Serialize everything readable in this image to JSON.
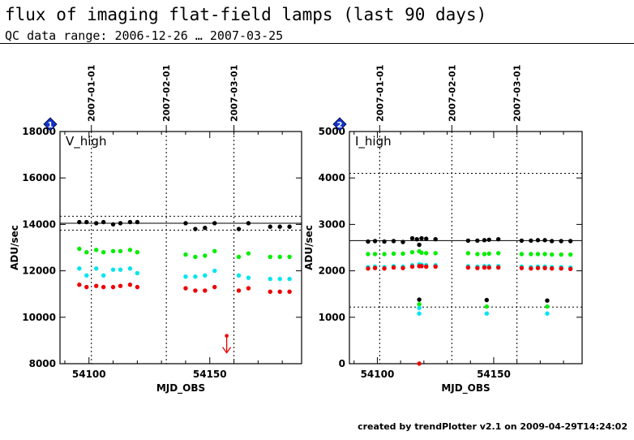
{
  "header": {
    "title": "flux of imaging flat-field lamps (last 90 days)",
    "subtitle": "QC data range: 2006-12-26 … 2007-03-25"
  },
  "footer": {
    "text": "created by trendPlotter v2.1 on 2009-04-29T14:24:02"
  },
  "chart_data": [
    {
      "type": "scatter",
      "badge": "1",
      "label": "V_high",
      "xlabel": "MJD_OBS",
      "ylabel": "ADU/sec",
      "xlim": [
        54088,
        54188
      ],
      "ylim": [
        8000,
        18000
      ],
      "xticks": [
        54100,
        54150
      ],
      "xtick_labels": [
        "54100",
        "54150"
      ],
      "yticks": [
        8000,
        10000,
        12000,
        14000,
        16000,
        18000
      ],
      "ytick_labels": [
        "8000",
        "10000",
        "12000",
        "14000",
        "16000",
        "18000"
      ],
      "date_marks": [
        {
          "x": 54101,
          "label": "2007-01-01"
        },
        {
          "x": 54132,
          "label": "2007-02-01"
        },
        {
          "x": 54160,
          "label": "2007-03-01"
        }
      ],
      "ref_lines": [
        {
          "y": 14050,
          "style": "solid"
        },
        {
          "y": 14350,
          "style": "dotted"
        },
        {
          "y": 13750,
          "style": "dotted"
        }
      ],
      "series": [
        {
          "color": "#000000",
          "points": [
            [
              54096,
              14100
            ],
            [
              54099,
              14100
            ],
            [
              54103,
              14050
            ],
            [
              54106,
              14100
            ],
            [
              54110,
              14000
            ],
            [
              54113,
              14050
            ],
            [
              54117,
              14100
            ],
            [
              54120,
              14100
            ],
            [
              54140,
              14050
            ],
            [
              54144,
              13800
            ],
            [
              54148,
              13850
            ],
            [
              54152,
              14050
            ],
            [
              54162,
              13800
            ],
            [
              54166,
              14050
            ],
            [
              54175,
              13900
            ],
            [
              54179,
              13900
            ],
            [
              54183,
              13900
            ]
          ]
        },
        {
          "color": "#00ee00",
          "points": [
            [
              54096,
              12950
            ],
            [
              54099,
              12800
            ],
            [
              54103,
              12900
            ],
            [
              54106,
              12800
            ],
            [
              54110,
              12850
            ],
            [
              54113,
              12850
            ],
            [
              54117,
              12900
            ],
            [
              54120,
              12800
            ],
            [
              54140,
              12700
            ],
            [
              54144,
              12600
            ],
            [
              54148,
              12650
            ],
            [
              54152,
              12850
            ],
            [
              54162,
              12600
            ],
            [
              54166,
              12750
            ],
            [
              54175,
              12600
            ],
            [
              54179,
              12600
            ],
            [
              54183,
              12600
            ]
          ]
        },
        {
          "color": "#00e5ee",
          "points": [
            [
              54096,
              12100
            ],
            [
              54099,
              11800
            ],
            [
              54103,
              12100
            ],
            [
              54106,
              11800
            ],
            [
              54110,
              12050
            ],
            [
              54113,
              12050
            ],
            [
              54117,
              12100
            ],
            [
              54120,
              11900
            ],
            [
              54140,
              11750
            ],
            [
              54144,
              11750
            ],
            [
              54148,
              11800
            ],
            [
              54152,
              12000
            ],
            [
              54162,
              11800
            ],
            [
              54166,
              11700
            ],
            [
              54175,
              11650
            ],
            [
              54179,
              11650
            ],
            [
              54183,
              11650
            ]
          ]
        },
        {
          "color": "#ee0000",
          "points": [
            [
              54096,
              11400
            ],
            [
              54099,
              11300
            ],
            [
              54103,
              11350
            ],
            [
              54106,
              11300
            ],
            [
              54110,
              11300
            ],
            [
              54113,
              11350
            ],
            [
              54117,
              11400
            ],
            [
              54120,
              11300
            ],
            [
              54140,
              11250
            ],
            [
              54144,
              11150
            ],
            [
              54148,
              11150
            ],
            [
              54152,
              11300
            ],
            [
              54162,
              11150
            ],
            [
              54166,
              11250
            ],
            [
              54175,
              11100
            ],
            [
              54179,
              11100
            ],
            [
              54183,
              11100
            ]
          ]
        }
      ],
      "arrows": [
        {
          "x": 54157,
          "y": 9200,
          "color": "#ee0000"
        }
      ]
    },
    {
      "type": "scatter",
      "badge": "2",
      "label": "I_high",
      "xlabel": "MJD_OBS",
      "ylabel": "ADU/sec",
      "xlim": [
        54088,
        54188
      ],
      "ylim": [
        0,
        5000
      ],
      "xticks": [
        54100,
        54150
      ],
      "xtick_labels": [
        "54100",
        "54150"
      ],
      "yticks": [
        0,
        1000,
        2000,
        3000,
        4000,
        5000
      ],
      "ytick_labels": [
        "0",
        "1000",
        "2000",
        "3000",
        "4000",
        "5000"
      ],
      "date_marks": [
        {
          "x": 54101,
          "label": "2007-01-01"
        },
        {
          "x": 54132,
          "label": "2007-02-01"
        },
        {
          "x": 54160,
          "label": "2007-03-01"
        }
      ],
      "ref_lines": [
        {
          "y": 2650,
          "style": "solid"
        },
        {
          "y": 4100,
          "style": "dotted"
        },
        {
          "y": 1220,
          "style": "dotted"
        }
      ],
      "series": [
        {
          "color": "#000000",
          "points": [
            [
              54096,
              2630
            ],
            [
              54099,
              2640
            ],
            [
              54103,
              2630
            ],
            [
              54107,
              2640
            ],
            [
              54111,
              2620
            ],
            [
              54115,
              2700
            ],
            [
              54117,
              2680
            ],
            [
              54118,
              2560
            ],
            [
              54118,
              1380
            ],
            [
              54119,
              2700
            ],
            [
              54121,
              2690
            ],
            [
              54125,
              2680
            ],
            [
              54139,
              2650
            ],
            [
              54143,
              2650
            ],
            [
              54146,
              2660
            ],
            [
              54147,
              1370
            ],
            [
              54148,
              2670
            ],
            [
              54152,
              2680
            ],
            [
              54162,
              2650
            ],
            [
              54166,
              2650
            ],
            [
              54169,
              2660
            ],
            [
              54172,
              2660
            ],
            [
              54173,
              1360
            ],
            [
              54175,
              2640
            ],
            [
              54179,
              2640
            ],
            [
              54183,
              2640
            ]
          ]
        },
        {
          "color": "#00ee00",
          "points": [
            [
              54096,
              2360
            ],
            [
              54099,
              2360
            ],
            [
              54103,
              2360
            ],
            [
              54107,
              2370
            ],
            [
              54111,
              2370
            ],
            [
              54115,
              2400
            ],
            [
              54118,
              2420
            ],
            [
              54118,
              1280
            ],
            [
              54119,
              2390
            ],
            [
              54121,
              2380
            ],
            [
              54125,
              2380
            ],
            [
              54139,
              2380
            ],
            [
              54143,
              2360
            ],
            [
              54146,
              2360
            ],
            [
              54147,
              1230
            ],
            [
              54148,
              2370
            ],
            [
              54152,
              2380
            ],
            [
              54162,
              2360
            ],
            [
              54166,
              2360
            ],
            [
              54169,
              2360
            ],
            [
              54172,
              2360
            ],
            [
              54173,
              1230
            ],
            [
              54175,
              2350
            ],
            [
              54179,
              2350
            ],
            [
              54183,
              2350
            ]
          ]
        },
        {
          "color": "#00e5ee",
          "points": [
            [
              54096,
              2080
            ],
            [
              54099,
              2090
            ],
            [
              54103,
              2080
            ],
            [
              54107,
              2100
            ],
            [
              54111,
              2090
            ],
            [
              54115,
              2120
            ],
            [
              54118,
              2140
            ],
            [
              54118,
              1200
            ],
            [
              54118,
              1080
            ],
            [
              54119,
              2130
            ],
            [
              54121,
              2120
            ],
            [
              54125,
              2120
            ],
            [
              54139,
              2100
            ],
            [
              54143,
              2090
            ],
            [
              54146,
              2100
            ],
            [
              54147,
              1080
            ],
            [
              54148,
              2100
            ],
            [
              54152,
              2100
            ],
            [
              54162,
              2090
            ],
            [
              54166,
              2080
            ],
            [
              54169,
              2090
            ],
            [
              54172,
              2090
            ],
            [
              54173,
              1080
            ],
            [
              54175,
              2080
            ],
            [
              54179,
              2080
            ],
            [
              54183,
              2070
            ]
          ]
        },
        {
          "color": "#ee0000",
          "points": [
            [
              54096,
              2050
            ],
            [
              54099,
              2060
            ],
            [
              54103,
              2050
            ],
            [
              54107,
              2070
            ],
            [
              54111,
              2060
            ],
            [
              54115,
              2090
            ],
            [
              54118,
              2100
            ],
            [
              54118,
              2
            ],
            [
              54119,
              2100
            ],
            [
              54121,
              2090
            ],
            [
              54125,
              2090
            ],
            [
              54139,
              2070
            ],
            [
              54143,
              2060
            ],
            [
              54146,
              2070
            ],
            [
              54148,
              2070
            ],
            [
              54152,
              2070
            ],
            [
              54162,
              2060
            ],
            [
              54166,
              2050
            ],
            [
              54169,
              2060
            ],
            [
              54172,
              2060
            ],
            [
              54175,
              2050
            ],
            [
              54179,
              2050
            ],
            [
              54183,
              2040
            ]
          ]
        }
      ],
      "arrows": []
    }
  ]
}
